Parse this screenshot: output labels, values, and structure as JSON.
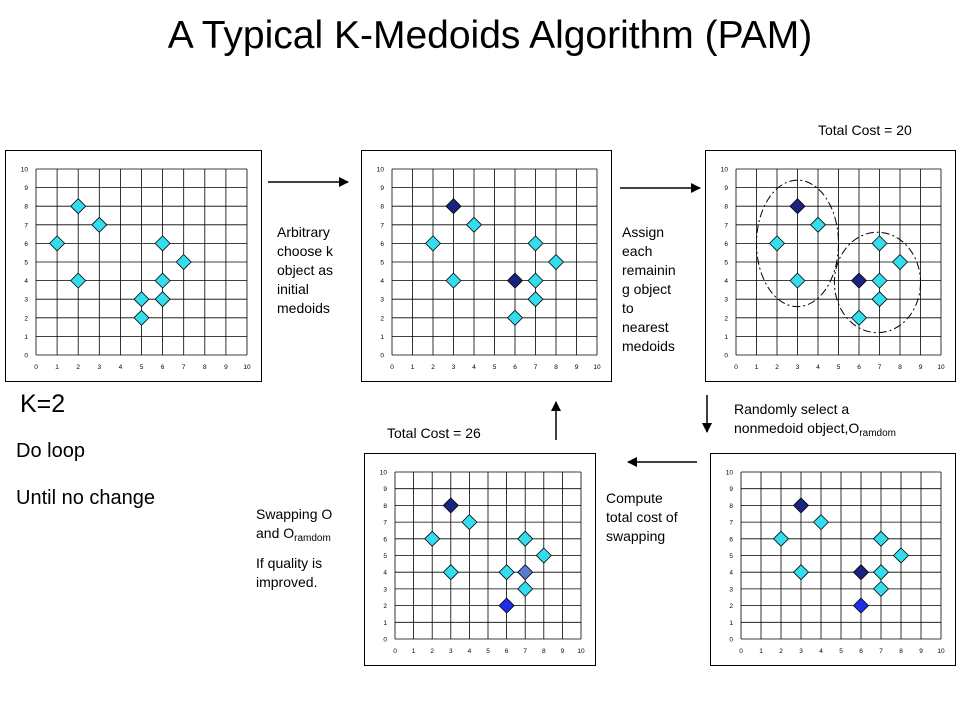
{
  "title": "A Typical K-Medoids Algorithm (PAM)",
  "costs": {
    "top": "Total Cost = 20",
    "bottom": "Total Cost = 26"
  },
  "steps": {
    "s1": [
      "Arbitrary",
      "choose k",
      "object as",
      "initial",
      "medoids"
    ],
    "s2": [
      "Assign",
      "each",
      "remainin",
      "g object",
      "to",
      "nearest",
      "medoids"
    ],
    "s3": {
      "line1": "Randomly select a",
      "line2": "nonmedoid object,O",
      "sub": "ramdom"
    },
    "s4": [
      "Compute",
      "total cost of",
      "swapping"
    ],
    "s5": {
      "line1": "Swapping O",
      "line2": "and O",
      "sub": "ramdom",
      "line3": "If quality is",
      "line4": "improved."
    }
  },
  "side": {
    "k": "K=2",
    "loop": "Do loop",
    "until": "Until no change"
  },
  "colors": {
    "point": "#33ddee",
    "medoid": "#1a237e",
    "random": "#1f2ee6",
    "swapped": "#5a7ccf"
  },
  "axis_ticks": [
    "0",
    "1",
    "2",
    "3",
    "4",
    "5",
    "6",
    "7",
    "8",
    "9",
    "10"
  ],
  "chart_data": [
    {
      "type": "scatter",
      "xlim": [
        0,
        10
      ],
      "ylim": [
        0,
        10
      ],
      "grid": true,
      "points": [
        {
          "x": 1,
          "y": 6
        },
        {
          "x": 2,
          "y": 4
        },
        {
          "x": 2,
          "y": 8
        },
        {
          "x": 3,
          "y": 7
        },
        {
          "x": 5,
          "y": 2
        },
        {
          "x": 5,
          "y": 3
        },
        {
          "x": 6,
          "y": 4
        },
        {
          "x": 6,
          "y": 3
        },
        {
          "x": 6,
          "y": 6
        },
        {
          "x": 7,
          "y": 5
        }
      ],
      "medoids": [],
      "random": [],
      "swapped": [],
      "clusters": []
    },
    {
      "type": "scatter",
      "xlim": [
        0,
        10
      ],
      "ylim": [
        0,
        10
      ],
      "grid": true,
      "points": [
        {
          "x": 2,
          "y": 6
        },
        {
          "x": 3,
          "y": 4
        },
        {
          "x": 4,
          "y": 7
        },
        {
          "x": 6,
          "y": 2
        },
        {
          "x": 7,
          "y": 6
        },
        {
          "x": 7,
          "y": 4
        },
        {
          "x": 7,
          "y": 3
        },
        {
          "x": 8,
          "y": 5
        }
      ],
      "medoids": [
        {
          "x": 3,
          "y": 8
        },
        {
          "x": 6,
          "y": 4
        }
      ],
      "random": [],
      "swapped": [],
      "clusters": []
    },
    {
      "type": "scatter",
      "xlim": [
        0,
        10
      ],
      "ylim": [
        0,
        10
      ],
      "grid": true,
      "points": [
        {
          "x": 2,
          "y": 6
        },
        {
          "x": 3,
          "y": 4
        },
        {
          "x": 4,
          "y": 7
        },
        {
          "x": 6,
          "y": 2
        },
        {
          "x": 7,
          "y": 6
        },
        {
          "x": 7,
          "y": 4
        },
        {
          "x": 7,
          "y": 3
        },
        {
          "x": 8,
          "y": 5
        }
      ],
      "medoids": [
        {
          "x": 3,
          "y": 8
        },
        {
          "x": 6,
          "y": 4
        }
      ],
      "random": [],
      "swapped": [],
      "clusters": [
        {
          "cx": 3,
          "cy": 6,
          "rx": 2,
          "ry": 3.4
        },
        {
          "cx": 6.9,
          "cy": 3.9,
          "rx": 2.1,
          "ry": 2.7
        }
      ]
    },
    {
      "type": "scatter",
      "xlim": [
        0,
        10
      ],
      "ylim": [
        0,
        10
      ],
      "grid": true,
      "points": [
        {
          "x": 2,
          "y": 6
        },
        {
          "x": 3,
          "y": 4
        },
        {
          "x": 4,
          "y": 7
        },
        {
          "x": 7,
          "y": 6
        },
        {
          "x": 7,
          "y": 4
        },
        {
          "x": 7,
          "y": 3
        },
        {
          "x": 8,
          "y": 5
        }
      ],
      "medoids": [
        {
          "x": 3,
          "y": 8
        },
        {
          "x": 6,
          "y": 4
        }
      ],
      "random": [
        {
          "x": 6,
          "y": 2
        }
      ],
      "swapped": [],
      "clusters": []
    },
    {
      "type": "scatter",
      "xlim": [
        0,
        10
      ],
      "ylim": [
        0,
        10
      ],
      "grid": true,
      "points": [
        {
          "x": 2,
          "y": 6
        },
        {
          "x": 3,
          "y": 4
        },
        {
          "x": 4,
          "y": 7
        },
        {
          "x": 6,
          "y": 4
        },
        {
          "x": 7,
          "y": 6
        },
        {
          "x": 7,
          "y": 3
        },
        {
          "x": 8,
          "y": 5
        }
      ],
      "medoids": [
        {
          "x": 3,
          "y": 8
        }
      ],
      "random": [
        {
          "x": 6,
          "y": 2
        }
      ],
      "swapped": [
        {
          "x": 7,
          "y": 4
        }
      ],
      "clusters": []
    }
  ]
}
